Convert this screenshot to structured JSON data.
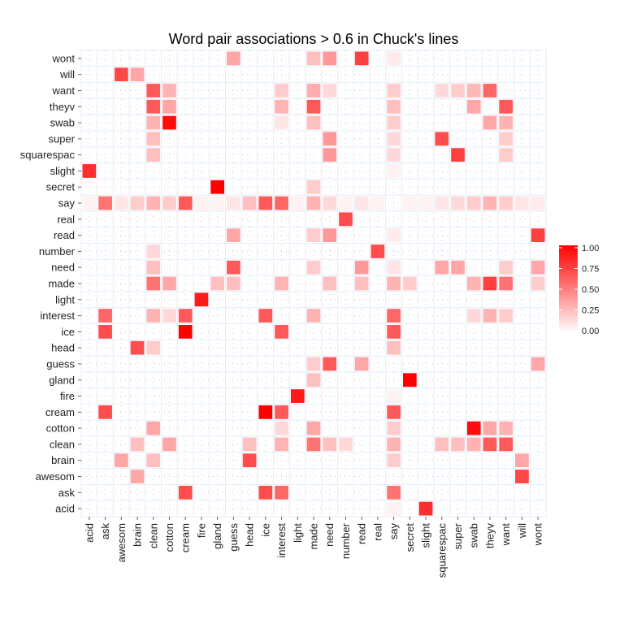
{
  "chart_data": {
    "type": "heatmap",
    "title": "Word pair associations > 0.6 in Chuck's lines",
    "xlabel": "",
    "ylabel": "",
    "words": [
      "acid",
      "ask",
      "awesom",
      "brain",
      "clean",
      "cotton",
      "cream",
      "fire",
      "gland",
      "guess",
      "head",
      "ice",
      "interest",
      "light",
      "made",
      "need",
      "number",
      "read",
      "real",
      "say",
      "secret",
      "slight",
      "squarespac",
      "super",
      "swab",
      "theyv",
      "want",
      "will",
      "wont"
    ],
    "color_scale": {
      "low": "#ffffff",
      "high": "#ff0000",
      "min": 0,
      "max": 1
    },
    "legend": {
      "position": "right",
      "ticks": [
        "1.00",
        "0.75",
        "0.50",
        "0.25",
        "0.00"
      ]
    },
    "cells": [
      {
        "row": "wont",
        "col": "guess",
        "value": 0.35
      },
      {
        "row": "wont",
        "col": "made",
        "value": 0.25
      },
      {
        "row": "wont",
        "col": "need",
        "value": 0.4
      },
      {
        "row": "wont",
        "col": "read",
        "value": 0.75
      },
      {
        "row": "wont",
        "col": "say",
        "value": 0.08
      },
      {
        "row": "will",
        "col": "awesom",
        "value": 0.72
      },
      {
        "row": "will",
        "col": "brain",
        "value": 0.35
      },
      {
        "row": "want",
        "col": "clean",
        "value": 0.65
      },
      {
        "row": "want",
        "col": "cotton",
        "value": 0.3
      },
      {
        "row": "want",
        "col": "interest",
        "value": 0.2
      },
      {
        "row": "want",
        "col": "made",
        "value": 0.32
      },
      {
        "row": "want",
        "col": "need",
        "value": 0.15
      },
      {
        "row": "want",
        "col": "say",
        "value": 0.2
      },
      {
        "row": "want",
        "col": "squarespac",
        "value": 0.15
      },
      {
        "row": "want",
        "col": "super",
        "value": 0.2
      },
      {
        "row": "want",
        "col": "swab",
        "value": 0.28
      },
      {
        "row": "want",
        "col": "theyv",
        "value": 0.6
      },
      {
        "row": "theyv",
        "col": "clean",
        "value": 0.65
      },
      {
        "row": "theyv",
        "col": "cotton",
        "value": 0.35
      },
      {
        "row": "theyv",
        "col": "interest",
        "value": 0.3
      },
      {
        "row": "theyv",
        "col": "made",
        "value": 0.65
      },
      {
        "row": "theyv",
        "col": "say",
        "value": 0.25
      },
      {
        "row": "theyv",
        "col": "swab",
        "value": 0.35
      },
      {
        "row": "theyv",
        "col": "want",
        "value": 0.65
      },
      {
        "row": "swab",
        "col": "clean",
        "value": 0.3
      },
      {
        "row": "swab",
        "col": "cotton",
        "value": 0.95
      },
      {
        "row": "swab",
        "col": "interest",
        "value": 0.1
      },
      {
        "row": "swab",
        "col": "made",
        "value": 0.25
      },
      {
        "row": "swab",
        "col": "say",
        "value": 0.2
      },
      {
        "row": "swab",
        "col": "theyv",
        "value": 0.35
      },
      {
        "row": "swab",
        "col": "want",
        "value": 0.3
      },
      {
        "row": "super",
        "col": "clean",
        "value": 0.25
      },
      {
        "row": "super",
        "col": "need",
        "value": 0.4
      },
      {
        "row": "super",
        "col": "say",
        "value": 0.15
      },
      {
        "row": "super",
        "col": "squarespac",
        "value": 0.7
      },
      {
        "row": "super",
        "col": "want",
        "value": 0.2
      },
      {
        "row": "squarespac",
        "col": "clean",
        "value": 0.25
      },
      {
        "row": "squarespac",
        "col": "need",
        "value": 0.4
      },
      {
        "row": "squarespac",
        "col": "say",
        "value": 0.15
      },
      {
        "row": "squarespac",
        "col": "super",
        "value": 0.75
      },
      {
        "row": "squarespac",
        "col": "want",
        "value": 0.2
      },
      {
        "row": "slight",
        "col": "acid",
        "value": 0.82
      },
      {
        "row": "slight",
        "col": "say",
        "value": 0.05
      },
      {
        "row": "secret",
        "col": "gland",
        "value": 1.0
      },
      {
        "row": "secret",
        "col": "made",
        "value": 0.2
      },
      {
        "row": "say",
        "col": "acid",
        "value": 0.05
      },
      {
        "row": "say",
        "col": "ask",
        "value": 0.55
      },
      {
        "row": "say",
        "col": "awesom",
        "value": 0.1
      },
      {
        "row": "say",
        "col": "brain",
        "value": 0.2
      },
      {
        "row": "say",
        "col": "clean",
        "value": 0.3
      },
      {
        "row": "say",
        "col": "cotton",
        "value": 0.2
      },
      {
        "row": "say",
        "col": "cream",
        "value": 0.65
      },
      {
        "row": "say",
        "col": "fire",
        "value": 0.05
      },
      {
        "row": "say",
        "col": "gland",
        "value": 0.05
      },
      {
        "row": "say",
        "col": "guess",
        "value": 0.1
      },
      {
        "row": "say",
        "col": "head",
        "value": 0.25
      },
      {
        "row": "say",
        "col": "ice",
        "value": 0.65
      },
      {
        "row": "say",
        "col": "interest",
        "value": 0.6
      },
      {
        "row": "say",
        "col": "light",
        "value": 0.05
      },
      {
        "row": "say",
        "col": "made",
        "value": 0.3
      },
      {
        "row": "say",
        "col": "need",
        "value": 0.15
      },
      {
        "row": "say",
        "col": "number",
        "value": 0.05
      },
      {
        "row": "say",
        "col": "read",
        "value": 0.1
      },
      {
        "row": "say",
        "col": "real",
        "value": 0.05
      },
      {
        "row": "say",
        "col": "secret",
        "value": 0.05
      },
      {
        "row": "say",
        "col": "slight",
        "value": 0.05
      },
      {
        "row": "say",
        "col": "squarespac",
        "value": 0.1
      },
      {
        "row": "say",
        "col": "super",
        "value": 0.15
      },
      {
        "row": "say",
        "col": "swab",
        "value": 0.2
      },
      {
        "row": "say",
        "col": "theyv",
        "value": 0.3
      },
      {
        "row": "say",
        "col": "want",
        "value": 0.2
      },
      {
        "row": "say",
        "col": "will",
        "value": 0.1
      },
      {
        "row": "say",
        "col": "wont",
        "value": 0.08
      },
      {
        "row": "real",
        "col": "number",
        "value": 0.7
      },
      {
        "row": "read",
        "col": "guess",
        "value": 0.35
      },
      {
        "row": "read",
        "col": "made",
        "value": 0.2
      },
      {
        "row": "read",
        "col": "need",
        "value": 0.4
      },
      {
        "row": "read",
        "col": "say",
        "value": 0.08
      },
      {
        "row": "read",
        "col": "wont",
        "value": 0.75
      },
      {
        "row": "number",
        "col": "clean",
        "value": 0.15
      },
      {
        "row": "number",
        "col": "real",
        "value": 0.7
      },
      {
        "row": "need",
        "col": "clean",
        "value": 0.25
      },
      {
        "row": "need",
        "col": "guess",
        "value": 0.65
      },
      {
        "row": "need",
        "col": "made",
        "value": 0.2
      },
      {
        "row": "need",
        "col": "read",
        "value": 0.4
      },
      {
        "row": "need",
        "col": "say",
        "value": 0.1
      },
      {
        "row": "need",
        "col": "squarespac",
        "value": 0.35
      },
      {
        "row": "need",
        "col": "super",
        "value": 0.35
      },
      {
        "row": "need",
        "col": "want",
        "value": 0.2
      },
      {
        "row": "need",
        "col": "wont",
        "value": 0.35
      },
      {
        "row": "made",
        "col": "clean",
        "value": 0.55
      },
      {
        "row": "made",
        "col": "cotton",
        "value": 0.35
      },
      {
        "row": "made",
        "col": "gland",
        "value": 0.25
      },
      {
        "row": "made",
        "col": "guess",
        "value": 0.25
      },
      {
        "row": "made",
        "col": "interest",
        "value": 0.3
      },
      {
        "row": "made",
        "col": "need",
        "value": 0.25
      },
      {
        "row": "made",
        "col": "read",
        "value": 0.25
      },
      {
        "row": "made",
        "col": "say",
        "value": 0.3
      },
      {
        "row": "made",
        "col": "secret",
        "value": 0.2
      },
      {
        "row": "made",
        "col": "swab",
        "value": 0.3
      },
      {
        "row": "made",
        "col": "theyv",
        "value": 0.75
      },
      {
        "row": "made",
        "col": "want",
        "value": 0.55
      },
      {
        "row": "made",
        "col": "wont",
        "value": 0.2
      },
      {
        "row": "light",
        "col": "fire",
        "value": 0.9
      },
      {
        "row": "interest",
        "col": "ask",
        "value": 0.6
      },
      {
        "row": "interest",
        "col": "clean",
        "value": 0.3
      },
      {
        "row": "interest",
        "col": "cotton",
        "value": 0.15
      },
      {
        "row": "interest",
        "col": "cream",
        "value": 0.65
      },
      {
        "row": "interest",
        "col": "ice",
        "value": 0.65
      },
      {
        "row": "interest",
        "col": "made",
        "value": 0.3
      },
      {
        "row": "interest",
        "col": "say",
        "value": 0.6
      },
      {
        "row": "interest",
        "col": "swab",
        "value": 0.15
      },
      {
        "row": "interest",
        "col": "theyv",
        "value": 0.3
      },
      {
        "row": "interest",
        "col": "want",
        "value": 0.2
      },
      {
        "row": "ice",
        "col": "ask",
        "value": 0.7
      },
      {
        "row": "ice",
        "col": "cream",
        "value": 1.0
      },
      {
        "row": "ice",
        "col": "interest",
        "value": 0.65
      },
      {
        "row": "ice",
        "col": "say",
        "value": 0.65
      },
      {
        "row": "head",
        "col": "brain",
        "value": 0.7
      },
      {
        "row": "head",
        "col": "clean",
        "value": 0.2
      },
      {
        "row": "head",
        "col": "say",
        "value": 0.25
      },
      {
        "row": "guess",
        "col": "made",
        "value": 0.2
      },
      {
        "row": "guess",
        "col": "need",
        "value": 0.65
      },
      {
        "row": "guess",
        "col": "read",
        "value": 0.35
      },
      {
        "row": "guess",
        "col": "wont",
        "value": 0.35
      },
      {
        "row": "gland",
        "col": "made",
        "value": 0.25
      },
      {
        "row": "gland",
        "col": "secret",
        "value": 1.0
      },
      {
        "row": "fire",
        "col": "light",
        "value": 0.9
      },
      {
        "row": "fire",
        "col": "say",
        "value": 0.05
      },
      {
        "row": "cream",
        "col": "ask",
        "value": 0.7
      },
      {
        "row": "cream",
        "col": "ice",
        "value": 1.0
      },
      {
        "row": "cream",
        "col": "interest",
        "value": 0.65
      },
      {
        "row": "cream",
        "col": "say",
        "value": 0.65
      },
      {
        "row": "cotton",
        "col": "clean",
        "value": 0.35
      },
      {
        "row": "cotton",
        "col": "interest",
        "value": 0.15
      },
      {
        "row": "cotton",
        "col": "made",
        "value": 0.35
      },
      {
        "row": "cotton",
        "col": "say",
        "value": 0.2
      },
      {
        "row": "cotton",
        "col": "swab",
        "value": 0.95
      },
      {
        "row": "cotton",
        "col": "theyv",
        "value": 0.35
      },
      {
        "row": "cotton",
        "col": "want",
        "value": 0.3
      },
      {
        "row": "clean",
        "col": "brain",
        "value": 0.25
      },
      {
        "row": "clean",
        "col": "cotton",
        "value": 0.35
      },
      {
        "row": "clean",
        "col": "head",
        "value": 0.25
      },
      {
        "row": "clean",
        "col": "interest",
        "value": 0.3
      },
      {
        "row": "clean",
        "col": "made",
        "value": 0.55
      },
      {
        "row": "clean",
        "col": "need",
        "value": 0.25
      },
      {
        "row": "clean",
        "col": "number",
        "value": 0.15
      },
      {
        "row": "clean",
        "col": "say",
        "value": 0.3
      },
      {
        "row": "clean",
        "col": "squarespac",
        "value": 0.25
      },
      {
        "row": "clean",
        "col": "super",
        "value": 0.25
      },
      {
        "row": "clean",
        "col": "swab",
        "value": 0.3
      },
      {
        "row": "clean",
        "col": "theyv",
        "value": 0.65
      },
      {
        "row": "clean",
        "col": "want",
        "value": 0.65
      },
      {
        "row": "brain",
        "col": "awesom",
        "value": 0.35
      },
      {
        "row": "brain",
        "col": "clean",
        "value": 0.25
      },
      {
        "row": "brain",
        "col": "head",
        "value": 0.7
      },
      {
        "row": "brain",
        "col": "say",
        "value": 0.2
      },
      {
        "row": "brain",
        "col": "will",
        "value": 0.35
      },
      {
        "row": "awesom",
        "col": "brain",
        "value": 0.35
      },
      {
        "row": "awesom",
        "col": "will",
        "value": 0.72
      },
      {
        "row": "ask",
        "col": "cream",
        "value": 0.7
      },
      {
        "row": "ask",
        "col": "ice",
        "value": 0.7
      },
      {
        "row": "ask",
        "col": "interest",
        "value": 0.6
      },
      {
        "row": "ask",
        "col": "say",
        "value": 0.55
      },
      {
        "row": "acid",
        "col": "say",
        "value": 0.05
      },
      {
        "row": "acid",
        "col": "slight",
        "value": 0.82
      }
    ]
  }
}
